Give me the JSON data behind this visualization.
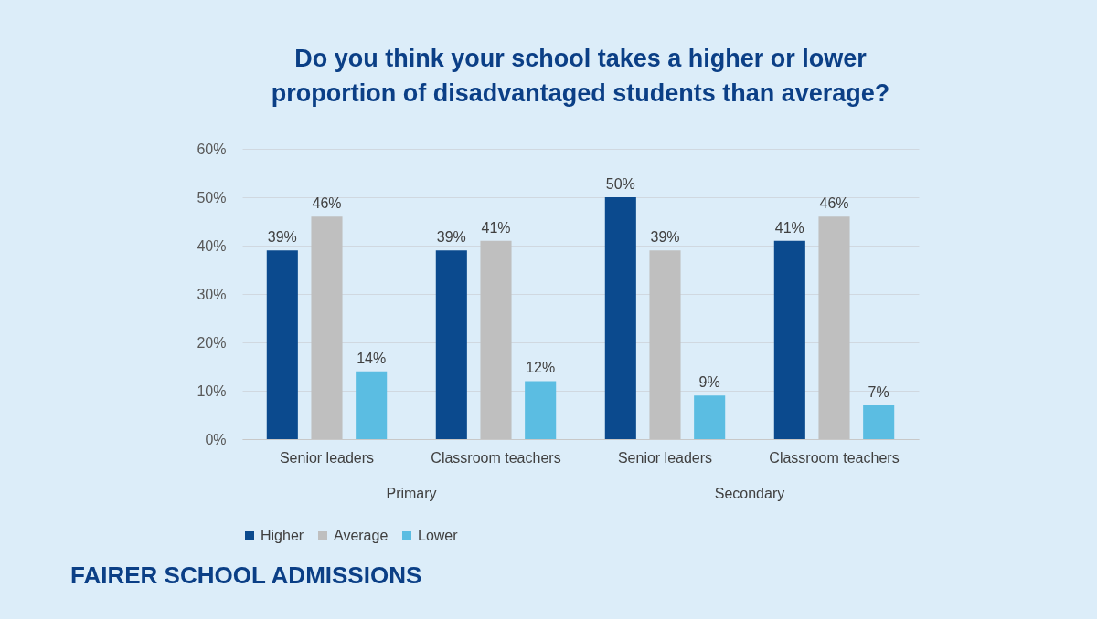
{
  "chart_data": {
    "type": "bar",
    "title": "Do you think your school takes a higher or lower proportion of disadvantaged students than average?",
    "categories": [
      "Senior leaders",
      "Classroom teachers",
      "Senior leaders",
      "Classroom teachers"
    ],
    "series": [
      {
        "name": "Higher",
        "color": "#0b4a8e",
        "values": [
          39,
          39,
          50,
          41
        ],
        "value_labels": [
          "39%",
          "39%",
          "50%",
          "41%"
        ]
      },
      {
        "name": "Average",
        "color": "#bfbfbf",
        "values": [
          46,
          41,
          39,
          46
        ],
        "value_labels": [
          "46%",
          "41%",
          "39%",
          "46%"
        ]
      },
      {
        "name": "Lower",
        "color": "#5bbde2",
        "values": [
          14,
          12,
          9,
          7
        ],
        "value_labels": [
          "14%",
          "12%",
          "9%",
          "7%"
        ]
      }
    ],
    "ylim": [
      0,
      60
    ],
    "yticks": [
      {
        "value": 0,
        "label": "0%"
      },
      {
        "value": 10,
        "label": "10%"
      },
      {
        "value": 20,
        "label": "20%"
      },
      {
        "value": 30,
        "label": "30%"
      },
      {
        "value": 40,
        "label": "40%"
      },
      {
        "value": 50,
        "label": "50%"
      },
      {
        "value": 60,
        "label": "60%"
      }
    ],
    "grid": "y",
    "legend": "bottom",
    "annotations": [
      "Primary",
      "Secondary",
      "FAIRER SCHOOL ADMISSIONS"
    ]
  }
}
